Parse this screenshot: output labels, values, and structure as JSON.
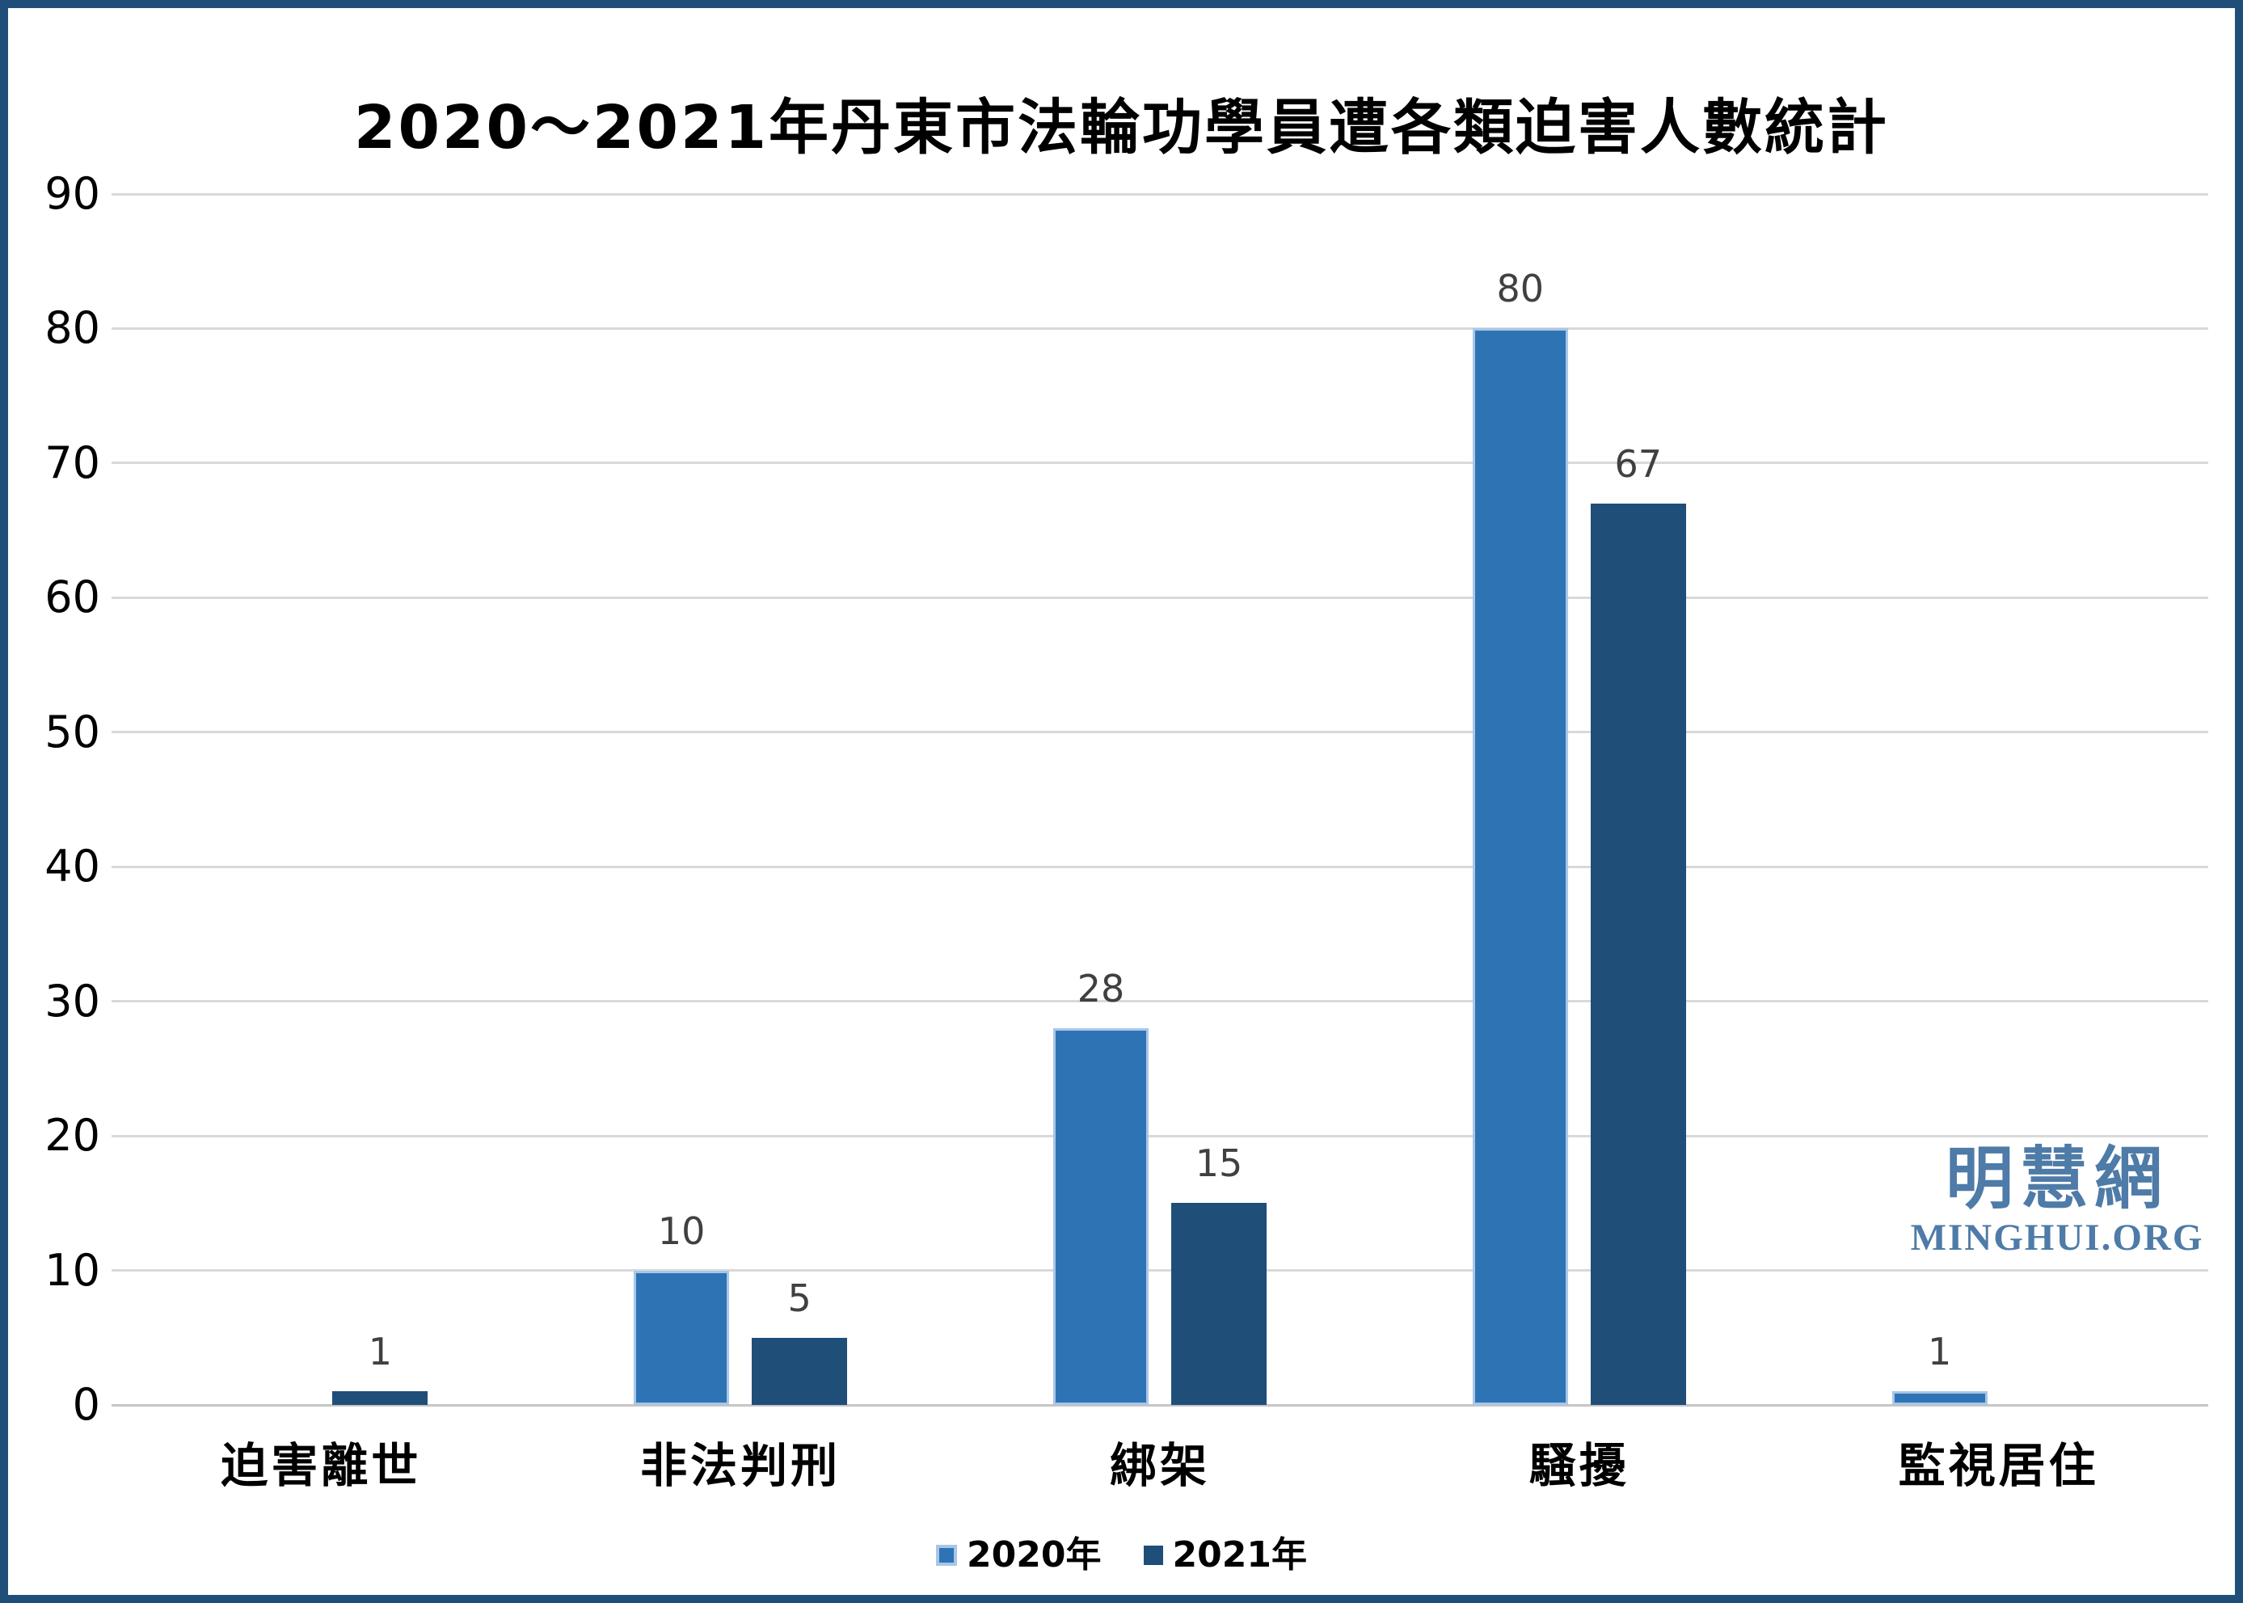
{
  "title": "2020～2021年丹東市法輪功學員遭各類迫害人數統計",
  "colors": {
    "frame": "#1F4E79",
    "gridline": "#D9D9D9",
    "axis_line": "#C6C6C6",
    "tick_label": "#000000",
    "data_label": "#404040",
    "watermark": "#4E7BA7"
  },
  "chart_data": {
    "type": "bar",
    "title": "2020～2021年丹東市法輪功學員遭各類迫害人數統計",
    "categories": [
      "迫害離世",
      "非法判刑",
      "綁架",
      "騷擾",
      "監視居住"
    ],
    "series": [
      {
        "name": "2020年",
        "values": [
          0,
          10,
          28,
          80,
          1
        ],
        "color": "#2E74B5",
        "border_color": "#A8C6E8",
        "selected": true
      },
      {
        "name": "2021年",
        "values": [
          1,
          5,
          15,
          67,
          0
        ],
        "color": "#1F4E79",
        "border_color": "",
        "selected": false
      }
    ],
    "xlabel": "",
    "ylabel": "",
    "ylim": [
      0,
      90
    ],
    "yticks": [
      0,
      10,
      20,
      30,
      40,
      50,
      60,
      70,
      80,
      90
    ],
    "grid": true,
    "legend_position": "bottom",
    "data_labels_shown": true,
    "zero_value_bars_hidden": true
  },
  "watermark": {
    "cjk": "明慧網",
    "latin": "MINGHUI.ORG"
  }
}
